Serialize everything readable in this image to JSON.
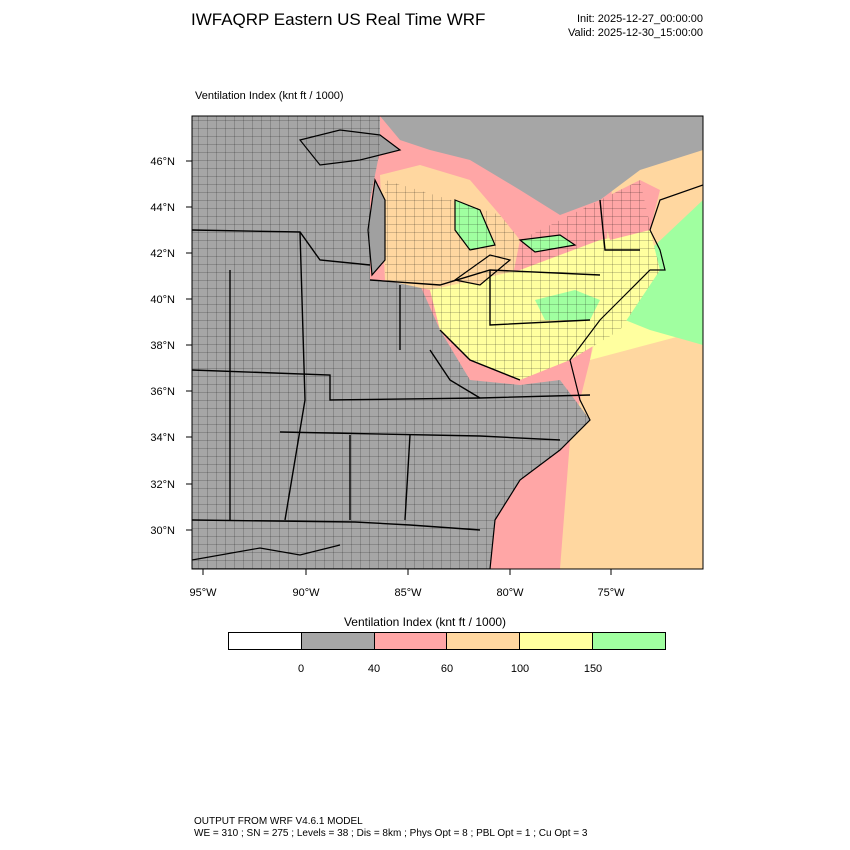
{
  "header": {
    "title": "IWFAQRP Eastern US Real Time WRF",
    "init": "Init: 2025-12-27_00:00:00",
    "valid": "Valid: 2025-12-30_15:00:00"
  },
  "panel_label": "Ventilation Index   (knt ft / 1000)",
  "map": {
    "lat_labels": [
      "46°N",
      "44°N",
      "42°N",
      "40°N",
      "38°N",
      "36°N",
      "34°N",
      "32°N",
      "30°N"
    ],
    "lon_labels": [
      "95°W",
      "90°W",
      "85°W",
      "80°W",
      "75°W"
    ],
    "colors": {
      "land_low": "#a6a6a6",
      "lake_land_gray": "#a0a0a0",
      "band_40_60": "#ffa6a6",
      "band_60_100": "#ffd7a0",
      "band_100_150": "#ffff9f",
      "band_150_plus": "#a0ffa0",
      "state_lines": "#000000",
      "county_lines": "#000000"
    }
  },
  "colorbar": {
    "title": "Ventilation Index  (knt ft / 1000)",
    "colors": [
      "#ffffff",
      "#a6a6a6",
      "#ffa6a6",
      "#ffd7a0",
      "#ffff9f",
      "#a0ffa0"
    ],
    "labels": [
      "0",
      "40",
      "60",
      "100",
      "150"
    ]
  },
  "footer": {
    "line1": "OUTPUT FROM WRF V4.6.1 MODEL",
    "line2": "WE = 310 ; SN = 275 ; Levels = 38 ; Dis = 8km ; Phys Opt = 8 ; PBL Opt = 1 ; Cu Opt = 3"
  }
}
